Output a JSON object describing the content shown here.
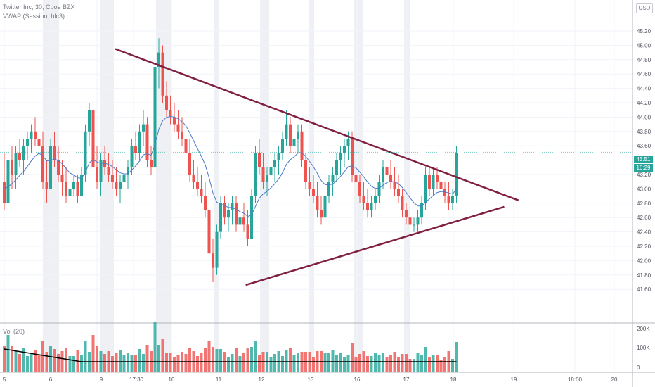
{
  "legend": {
    "symbol_line": "Twitter Inc, 30, Cboe BZX",
    "indicator_line": "VWAP (Session, hlc3)",
    "volume_line": "Vol (20)"
  },
  "currency": "USD",
  "last_price": "43.51",
  "countdown": "16:29",
  "colors": {
    "up": "#26a69a",
    "down": "#ef5350",
    "trendline": "#801f40",
    "vwap": "#4a7ac9",
    "session_shade": "#e0e3eb",
    "vol_ma": "#000000"
  },
  "price_axis": [
    "45.20",
    "45.00",
    "44.80",
    "44.60",
    "44.40",
    "44.20",
    "44.00",
    "43.80",
    "43.60",
    "43.40",
    "43.20",
    "43.00",
    "42.80",
    "42.60",
    "42.40",
    "42.20",
    "42.00",
    "41.80",
    "41.60"
  ],
  "volume_axis": [
    "200K",
    "100K",
    "0"
  ],
  "time_axis": [
    "5",
    "6",
    "9",
    "17:30",
    "10",
    "11",
    "12",
    "13",
    "16",
    "17",
    "18",
    "19",
    "18:00",
    "20"
  ],
  "chart_data": {
    "type": "candlestick",
    "title": "Twitter Inc, 30, Cboe BZX",
    "ylim": [
      41.5,
      45.3
    ],
    "trendlines": [
      {
        "from": [
          10,
          44.95
        ],
        "to": [
          180,
          42.84
        ]
      },
      {
        "from": [
          65,
          41.66
        ],
        "to": [
          174,
          42.75
        ]
      }
    ],
    "ohlc": [
      [
        43.1,
        43.5,
        42.7,
        42.8
      ],
      [
        42.8,
        43.6,
        42.5,
        43.4
      ],
      [
        43.4,
        43.6,
        43.0,
        43.2
      ],
      [
        43.2,
        43.6,
        43.0,
        43.5
      ],
      [
        43.5,
        43.7,
        43.3,
        43.4
      ],
      [
        43.4,
        43.7,
        43.2,
        43.6
      ],
      [
        43.6,
        43.8,
        43.4,
        43.7
      ],
      [
        43.7,
        43.9,
        43.5,
        43.8
      ],
      [
        43.8,
        44.0,
        43.6,
        43.7
      ],
      [
        43.7,
        43.9,
        43.5,
        43.6
      ],
      [
        43.6,
        43.8,
        43.0,
        43.1
      ],
      [
        43.1,
        43.4,
        42.8,
        43.0
      ],
      [
        43.0,
        43.7,
        43.0,
        43.6
      ],
      [
        43.6,
        43.8,
        43.3,
        43.4
      ],
      [
        43.4,
        43.6,
        43.1,
        43.2
      ],
      [
        43.2,
        43.4,
        42.9,
        43.1
      ],
      [
        43.1,
        43.3,
        42.8,
        42.9
      ],
      [
        42.9,
        43.1,
        42.7,
        43.0
      ],
      [
        43.0,
        43.2,
        42.9,
        43.1
      ],
      [
        43.1,
        43.2,
        42.8,
        42.9
      ],
      [
        42.9,
        43.3,
        42.9,
        43.2
      ],
      [
        43.2,
        43.9,
        43.1,
        43.8
      ],
      [
        43.8,
        44.2,
        43.6,
        44.1
      ],
      [
        44.1,
        44.3,
        43.2,
        43.3
      ],
      [
        43.3,
        43.6,
        43.0,
        43.1
      ],
      [
        43.1,
        43.5,
        42.9,
        43.4
      ],
      [
        43.4,
        43.6,
        43.2,
        43.3
      ],
      [
        43.3,
        43.5,
        43.1,
        43.2
      ],
      [
        43.2,
        43.4,
        43.0,
        43.1
      ],
      [
        43.1,
        43.3,
        42.9,
        43.0
      ],
      [
        43.0,
        43.2,
        42.8,
        43.1
      ],
      [
        43.1,
        43.3,
        42.9,
        43.2
      ],
      [
        43.2,
        43.4,
        43.0,
        43.3
      ],
      [
        43.3,
        43.7,
        43.2,
        43.6
      ],
      [
        43.6,
        43.8,
        43.4,
        43.5
      ],
      [
        43.5,
        43.9,
        43.4,
        43.8
      ],
      [
        43.8,
        44.1,
        43.6,
        43.9
      ],
      [
        43.9,
        44.0,
        43.3,
        43.4
      ],
      [
        43.4,
        43.6,
        43.2,
        43.3
      ],
      [
        43.3,
        44.9,
        43.3,
        44.7
      ],
      [
        44.7,
        45.1,
        44.4,
        44.9
      ],
      [
        44.9,
        45.0,
        44.2,
        44.3
      ],
      [
        44.3,
        44.5,
        44.0,
        44.1
      ],
      [
        44.1,
        44.3,
        43.9,
        44.0
      ],
      [
        44.0,
        44.2,
        43.8,
        43.9
      ],
      [
        43.9,
        44.1,
        43.7,
        43.8
      ],
      [
        43.8,
        44.0,
        43.6,
        43.7
      ],
      [
        43.7,
        43.9,
        43.4,
        43.5
      ],
      [
        43.5,
        43.7,
        43.1,
        43.2
      ],
      [
        43.2,
        43.4,
        43.0,
        43.1
      ],
      [
        43.1,
        43.3,
        42.9,
        43.0
      ],
      [
        43.0,
        43.2,
        42.8,
        42.9
      ],
      [
        42.9,
        43.1,
        42.6,
        42.7
      ],
      [
        42.7,
        42.9,
        42.0,
        42.1
      ],
      [
        42.1,
        42.3,
        41.7,
        41.9
      ],
      [
        41.9,
        42.5,
        41.8,
        42.4
      ],
      [
        42.4,
        42.9,
        42.3,
        42.8
      ],
      [
        42.8,
        42.9,
        42.5,
        42.6
      ],
      [
        42.6,
        42.8,
        42.4,
        42.7
      ],
      [
        42.7,
        42.9,
        42.5,
        42.8
      ],
      [
        42.8,
        42.9,
        42.4,
        42.5
      ],
      [
        42.5,
        42.7,
        42.3,
        42.6
      ],
      [
        42.6,
        42.8,
        42.4,
        42.5
      ],
      [
        42.5,
        42.7,
        42.2,
        42.3
      ],
      [
        42.3,
        43.0,
        42.3,
        42.9
      ],
      [
        42.9,
        43.6,
        42.8,
        43.5
      ],
      [
        43.5,
        43.7,
        43.2,
        43.3
      ],
      [
        43.3,
        43.5,
        43.0,
        43.1
      ],
      [
        43.1,
        43.3,
        42.9,
        43.2
      ],
      [
        43.2,
        43.4,
        43.0,
        43.3
      ],
      [
        43.3,
        43.5,
        43.1,
        43.4
      ],
      [
        43.4,
        43.6,
        43.2,
        43.5
      ],
      [
        43.5,
        43.8,
        43.4,
        43.7
      ],
      [
        43.7,
        44.1,
        43.6,
        43.9
      ],
      [
        43.9,
        44.0,
        43.5,
        43.6
      ],
      [
        43.6,
        43.8,
        43.4,
        43.7
      ],
      [
        43.7,
        43.9,
        43.5,
        43.8
      ],
      [
        43.8,
        43.9,
        43.3,
        43.4
      ],
      [
        43.4,
        43.5,
        43.0,
        43.1
      ],
      [
        43.1,
        43.3,
        42.9,
        43.0
      ],
      [
        43.0,
        43.2,
        42.8,
        42.9
      ],
      [
        42.9,
        43.1,
        42.6,
        42.7
      ],
      [
        42.7,
        42.9,
        42.5,
        42.6
      ],
      [
        42.6,
        43.0,
        42.5,
        42.9
      ],
      [
        42.9,
        43.2,
        42.8,
        43.1
      ],
      [
        43.1,
        43.3,
        42.9,
        43.2
      ],
      [
        43.2,
        43.5,
        43.1,
        43.4
      ],
      [
        43.4,
        43.6,
        43.2,
        43.5
      ],
      [
        43.5,
        43.7,
        43.3,
        43.6
      ],
      [
        43.6,
        43.8,
        43.4,
        43.7
      ],
      [
        43.7,
        43.8,
        43.1,
        43.2
      ],
      [
        43.2,
        43.4,
        43.0,
        43.1
      ],
      [
        43.1,
        43.2,
        42.8,
        42.9
      ],
      [
        42.9,
        43.1,
        42.7,
        42.8
      ],
      [
        42.8,
        43.0,
        42.6,
        42.7
      ],
      [
        42.7,
        42.9,
        42.6,
        42.8
      ],
      [
        42.8,
        43.0,
        42.7,
        42.9
      ],
      [
        42.9,
        43.2,
        42.8,
        43.1
      ],
      [
        43.1,
        43.4,
        43.0,
        43.3
      ],
      [
        43.3,
        43.5,
        43.1,
        43.2
      ],
      [
        43.2,
        43.4,
        43.0,
        43.1
      ],
      [
        43.1,
        43.3,
        42.9,
        43.0
      ],
      [
        43.0,
        43.2,
        42.8,
        42.9
      ],
      [
        42.9,
        43.0,
        42.6,
        42.7
      ],
      [
        42.7,
        42.8,
        42.5,
        42.6
      ],
      [
        42.6,
        42.7,
        42.4,
        42.5
      ],
      [
        42.5,
        42.6,
        42.4,
        42.5
      ],
      [
        42.5,
        42.7,
        42.4,
        42.6
      ],
      [
        42.6,
        42.9,
        42.5,
        42.8
      ],
      [
        42.8,
        43.3,
        42.7,
        43.2
      ],
      [
        43.2,
        43.3,
        42.9,
        43.0
      ],
      [
        43.0,
        43.3,
        42.9,
        43.2
      ],
      [
        43.2,
        43.3,
        43.0,
        43.1
      ],
      [
        43.1,
        43.2,
        42.9,
        43.0
      ],
      [
        43.0,
        43.1,
        42.8,
        42.9
      ],
      [
        42.9,
        43.1,
        42.7,
        42.8
      ],
      [
        42.8,
        43.0,
        42.7,
        42.9
      ],
      [
        42.9,
        43.6,
        42.8,
        43.5
      ]
    ]
  }
}
